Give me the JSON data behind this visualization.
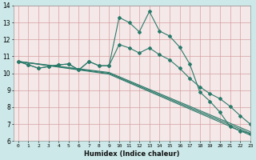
{
  "xlabel": "Humidex (Indice chaleur)",
  "ylim": [
    6,
    14
  ],
  "xlim": [
    -0.5,
    23
  ],
  "yticks": [
    6,
    7,
    8,
    9,
    10,
    11,
    12,
    13,
    14
  ],
  "xticks": [
    0,
    1,
    2,
    3,
    4,
    5,
    6,
    7,
    8,
    9,
    10,
    11,
    12,
    13,
    14,
    15,
    16,
    17,
    18,
    19,
    20,
    21,
    22,
    23
  ],
  "fig_bg": "#cce8e8",
  "axes_bg": "#f5e8e8",
  "grid_color": "#d4a0a0",
  "line_color": "#2a7a6a",
  "curve1_x": [
    0,
    1,
    2,
    3,
    4,
    5,
    6,
    7,
    8,
    9,
    10,
    11,
    12,
    13,
    14,
    15,
    16,
    17,
    18,
    19,
    20,
    21,
    22,
    23
  ],
  "curve1_y": [
    10.7,
    10.5,
    10.3,
    10.4,
    10.5,
    10.55,
    10.2,
    10.7,
    10.45,
    10.45,
    13.3,
    13.0,
    12.45,
    13.65,
    12.5,
    12.2,
    11.55,
    10.55,
    8.9,
    8.35,
    7.7,
    6.85,
    6.6,
    6.45
  ],
  "curve2_x": [
    0,
    1,
    2,
    3,
    4,
    5,
    6,
    7,
    8,
    9,
    10,
    11,
    12,
    13,
    14,
    15,
    16,
    17,
    18,
    19,
    20,
    21,
    22,
    23
  ],
  "curve2_y": [
    10.7,
    10.5,
    10.3,
    10.4,
    10.5,
    10.55,
    10.2,
    10.7,
    10.45,
    10.45,
    11.7,
    11.5,
    11.2,
    11.5,
    11.1,
    10.8,
    10.3,
    9.7,
    9.2,
    8.8,
    8.5,
    8.05,
    7.5,
    7.0
  ],
  "curve3_x": [
    0,
    9,
    23
  ],
  "curve3_y": [
    10.7,
    10.05,
    6.55
  ],
  "curve4_x": [
    0,
    9,
    23
  ],
  "curve4_y": [
    10.7,
    10.0,
    6.45
  ],
  "curve5_x": [
    0,
    9,
    23
  ],
  "curve5_y": [
    10.7,
    9.95,
    6.35
  ]
}
